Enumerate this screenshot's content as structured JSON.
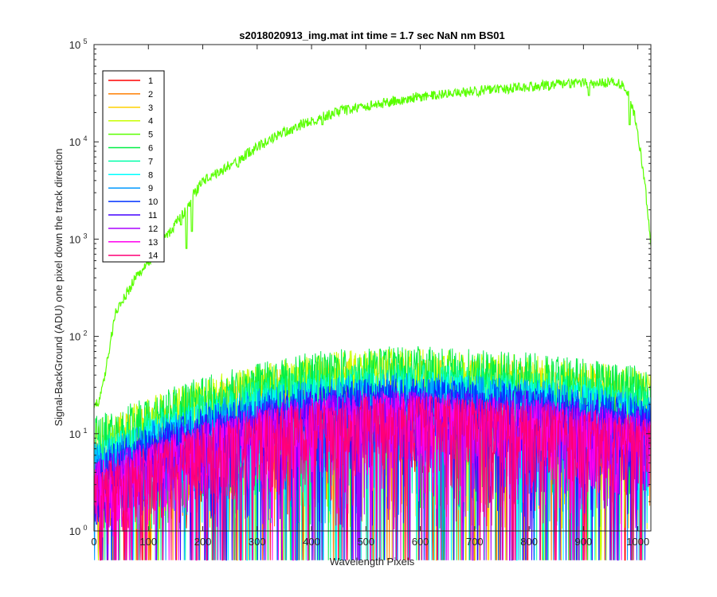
{
  "chart_data": {
    "type": "line",
    "title": "s2018020913_img.mat int time = 1.7 sec  NaN nm BS01",
    "xlabel": "Wavelength Pixels",
    "ylabel": "Signal-BackGround (ADU) one pixel down the track direction",
    "xlim": [
      0,
      1024
    ],
    "ylim": [
      1,
      100000
    ],
    "yscale": "log",
    "xticks": [
      0,
      100,
      200,
      300,
      400,
      500,
      600,
      700,
      800,
      900,
      1000
    ],
    "yticks": [
      {
        "value": 1,
        "base": "10",
        "exp": "0"
      },
      {
        "value": 10,
        "base": "10",
        "exp": "1"
      },
      {
        "value": 100,
        "base": "10",
        "exp": "2"
      },
      {
        "value": 1000,
        "base": "10",
        "exp": "3"
      },
      {
        "value": 10000,
        "base": "10",
        "exp": "4"
      },
      {
        "value": 100000,
        "base": "10",
        "exp": "5"
      }
    ],
    "grid": false,
    "legend_position": "top-left",
    "bright_series": "5",
    "bright_profile": [
      [
        0,
        20
      ],
      [
        10,
        22
      ],
      [
        20,
        40
      ],
      [
        30,
        90
      ],
      [
        40,
        180
      ],
      [
        60,
        280
      ],
      [
        80,
        450
      ],
      [
        100,
        600
      ],
      [
        120,
        900
      ],
      [
        140,
        1200
      ],
      [
        160,
        1800
      ],
      [
        170,
        2000
      ],
      [
        180,
        2800
      ],
      [
        200,
        4000
      ],
      [
        230,
        5000
      ],
      [
        260,
        6500
      ],
      [
        300,
        9000
      ],
      [
        350,
        13000
      ],
      [
        400,
        17000
      ],
      [
        450,
        21000
      ],
      [
        500,
        24000
      ],
      [
        550,
        27000
      ],
      [
        600,
        30000
      ],
      [
        650,
        32000
      ],
      [
        700,
        34000
      ],
      [
        750,
        36000
      ],
      [
        800,
        38000
      ],
      [
        850,
        40000
      ],
      [
        900,
        41000
      ],
      [
        950,
        41500
      ],
      [
        970,
        40000
      ],
      [
        985,
        30000
      ],
      [
        995,
        18000
      ],
      [
        1005,
        8000
      ],
      [
        1015,
        3000
      ],
      [
        1024,
        800
      ]
    ],
    "bright_dips": [
      {
        "x": 160,
        "value": 1400
      },
      {
        "x": 170,
        "value": 800
      },
      {
        "x": 180,
        "value": 1200
      },
      {
        "x": 265,
        "value": 5500
      },
      {
        "x": 420,
        "value": 15000
      },
      {
        "x": 910,
        "value": 30000
      },
      {
        "x": 985,
        "value": 15000
      }
    ],
    "noise_envelope": [
      [
        0,
        15
      ],
      [
        100,
        25
      ],
      [
        200,
        40
      ],
      [
        300,
        55
      ],
      [
        400,
        70
      ],
      [
        500,
        80
      ],
      [
        600,
        80
      ],
      [
        700,
        75
      ],
      [
        800,
        70
      ],
      [
        900,
        60
      ],
      [
        1000,
        50
      ],
      [
        1024,
        45
      ]
    ],
    "series": [
      {
        "name": "1",
        "color": "#ff0000",
        "level": 0.3
      },
      {
        "name": "2",
        "color": "#ff7f00",
        "level": 0.38
      },
      {
        "name": "3",
        "color": "#ffd000",
        "level": 0.72
      },
      {
        "name": "4",
        "color": "#c8ff00",
        "level": 0.85
      },
      {
        "name": "5",
        "color": "#5aff00",
        "level": 1.0
      },
      {
        "name": "6",
        "color": "#00ee44",
        "level": 0.9
      },
      {
        "name": "7",
        "color": "#00ffaa",
        "level": 0.6
      },
      {
        "name": "8",
        "color": "#00ffff",
        "level": 0.5
      },
      {
        "name": "9",
        "color": "#0099ff",
        "level": 0.48
      },
      {
        "name": "10",
        "color": "#0033ff",
        "level": 0.42
      },
      {
        "name": "11",
        "color": "#4400ff",
        "level": 0.36
      },
      {
        "name": "12",
        "color": "#aa00ff",
        "level": 0.32
      },
      {
        "name": "13",
        "color": "#ff00ee",
        "level": 0.3
      },
      {
        "name": "14",
        "color": "#ff0077",
        "level": 0.28
      }
    ]
  }
}
